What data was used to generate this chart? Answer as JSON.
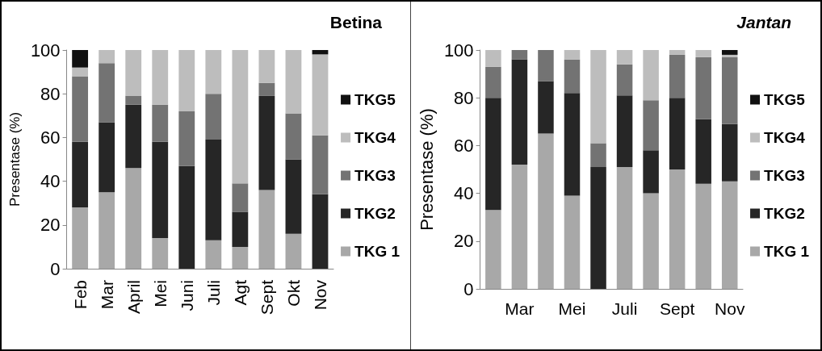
{
  "chart_data": [
    {
      "type": "bar",
      "title": "Betina",
      "ylabel": "Presentase (%)",
      "stacked": true,
      "legend": "right",
      "grid": false,
      "ylim": [
        0,
        100
      ],
      "yticks": [
        0,
        20,
        40,
        60,
        80,
        100
      ],
      "categories": [
        "Feb",
        "Mar",
        "April",
        "Mei",
        "Juni",
        "Juli",
        "Agt",
        "Sept",
        "Okt",
        "Nov"
      ],
      "series": [
        {
          "name": "TKG 1",
          "color": "#a8a8a8",
          "values": [
            28,
            35,
            46,
            14,
            0,
            13,
            10,
            36,
            16,
            0
          ]
        },
        {
          "name": "TKG2",
          "color": "#262626",
          "values": [
            30,
            32,
            29,
            44,
            47,
            46,
            16,
            43,
            34,
            34
          ]
        },
        {
          "name": "TKG3",
          "color": "#737373",
          "values": [
            30,
            27,
            4,
            17,
            25,
            21,
            13,
            6,
            21,
            27
          ]
        },
        {
          "name": "TKG4",
          "color": "#bdbdbd",
          "values": [
            4,
            6,
            21,
            25,
            28,
            20,
            61,
            15,
            29,
            37
          ]
        },
        {
          "name": "TKG5",
          "color": "#111111",
          "values": [
            8,
            0,
            0,
            0,
            0,
            0,
            0,
            0,
            0,
            2
          ]
        }
      ]
    },
    {
      "type": "bar",
      "title": "Jantan",
      "ylabel": "Presentase (%)",
      "stacked": true,
      "legend": "right",
      "grid": false,
      "ylim": [
        0,
        100
      ],
      "yticks": [
        0,
        20,
        40,
        60,
        80,
        100
      ],
      "categories": [
        null,
        "Mar",
        null,
        "Mei",
        null,
        "Juli",
        null,
        "Sept",
        null,
        "Nov"
      ],
      "series": [
        {
          "name": "TKG 1",
          "color": "#a8a8a8",
          "values": [
            33,
            52,
            65,
            39,
            0,
            51,
            40,
            50,
            44,
            45
          ]
        },
        {
          "name": "TKG2",
          "color": "#262626",
          "values": [
            47,
            44,
            22,
            43,
            51,
            30,
            18,
            30,
            27,
            24
          ]
        },
        {
          "name": "TKG3",
          "color": "#737373",
          "values": [
            13,
            4,
            13,
            14,
            10,
            13,
            21,
            18,
            26,
            28
          ]
        },
        {
          "name": "TKG4",
          "color": "#bdbdbd",
          "values": [
            7,
            0,
            0,
            4,
            39,
            6,
            21,
            2,
            3,
            1
          ]
        },
        {
          "name": "TKG5",
          "color": "#111111",
          "values": [
            0,
            0,
            0,
            0,
            0,
            0,
            0,
            0,
            0,
            2
          ]
        }
      ]
    }
  ]
}
